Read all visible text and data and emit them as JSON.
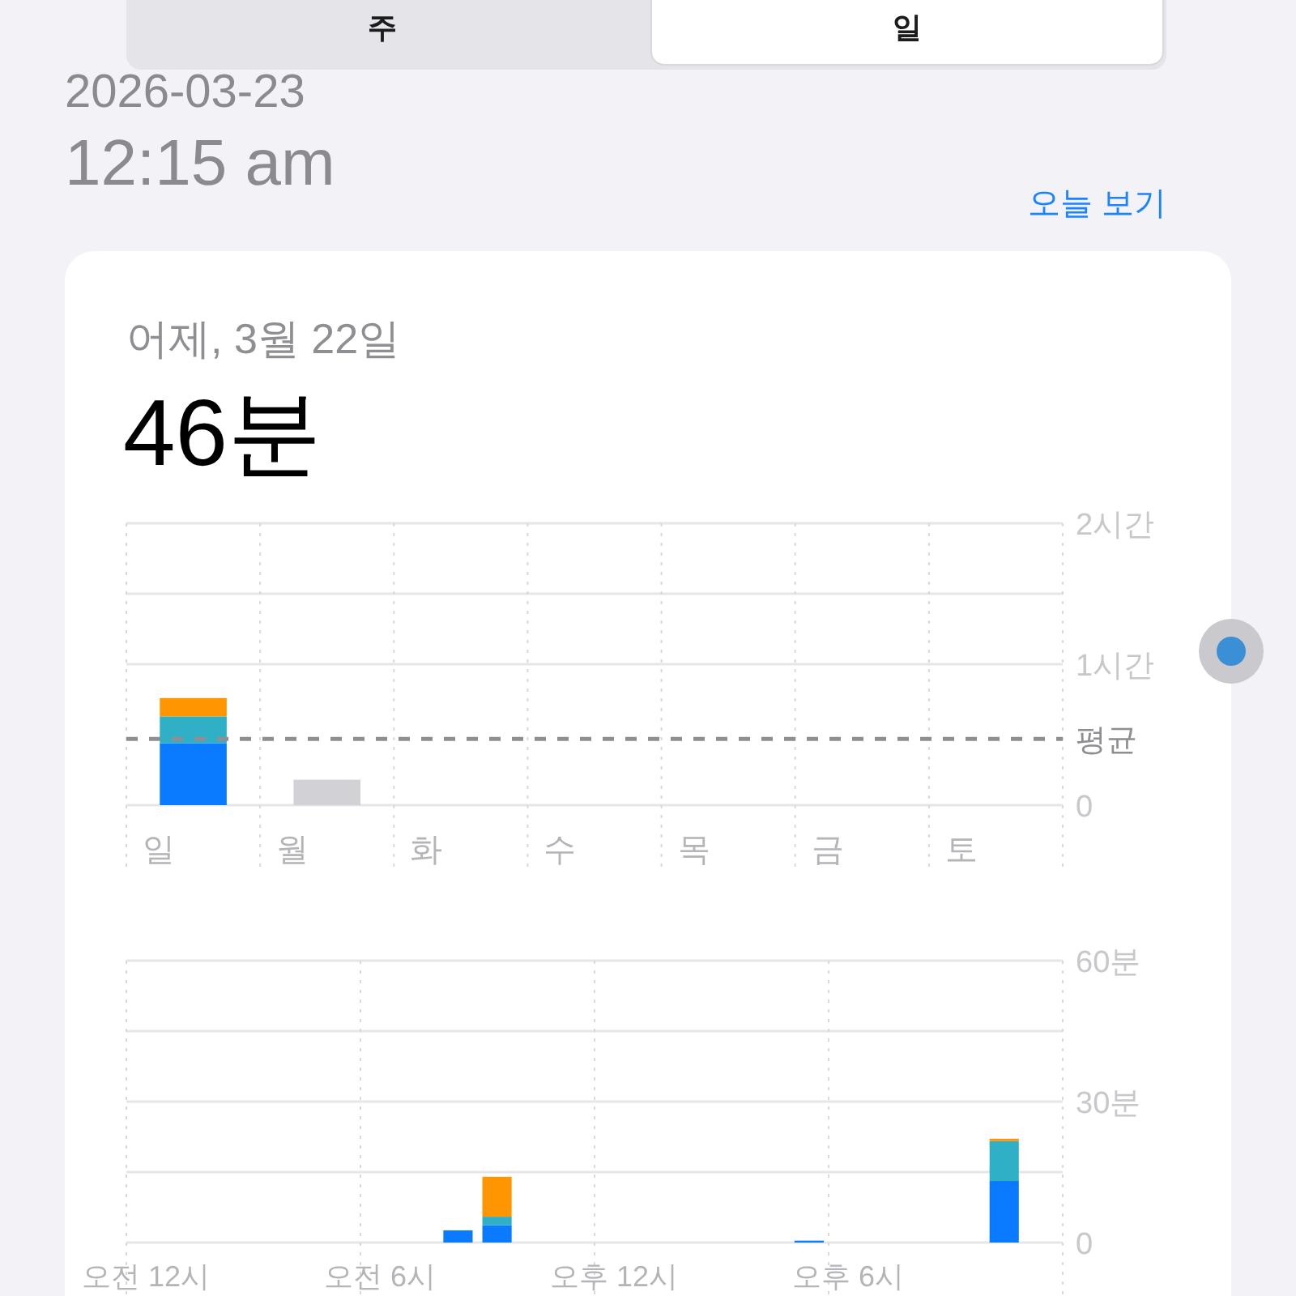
{
  "chart_data": [
    {
      "type": "bar",
      "stacked": true,
      "title": "46분",
      "subtitle": "어제, 3월 22일",
      "annotations": [
        "주",
        "일",
        "2026-03-23",
        "12:15 am",
        "오늘 보기"
      ],
      "categories": [
        "일",
        "월",
        "화",
        "수",
        "목",
        "금",
        "토"
      ],
      "series": [
        {
          "color": "#0a7aff",
          "values": [
            0.44,
            null,
            null,
            null,
            null,
            null,
            null
          ]
        },
        {
          "color": "#30b0c7",
          "values": [
            0.19,
            null,
            null,
            null,
            null,
            null,
            null
          ]
        },
        {
          "color": "#ff9500",
          "values": [
            0.13,
            null,
            null,
            null,
            null,
            null,
            null
          ]
        },
        {
          "color": "#d1d1d6",
          "values": [
            null,
            0.18,
            null,
            null,
            null,
            null,
            null
          ]
        }
      ],
      "ylim": [
        0,
        2
      ],
      "yticks": [
        0,
        {
          "value": 1,
          "label": "1시간"
        },
        {
          "value": 1.5,
          "label": null
        },
        {
          "value": 2,
          "label": "2시간"
        }
      ],
      "ref_lines": [
        {
          "axis": "y",
          "value": 0.47,
          "label": "평균",
          "color": "#8e8e93",
          "line_style": "dashed"
        }
      ],
      "grid": true
    },
    {
      "type": "bar",
      "stacked": true,
      "categories": [
        "오전 12시",
        null,
        null,
        null,
        null,
        null,
        "오전 6시",
        null,
        null,
        null,
        null,
        null,
        "오후 12시",
        null,
        null,
        null,
        null,
        null,
        "오후 6시",
        null,
        null,
        null,
        null,
        null
      ],
      "series": [
        {
          "color": "#0a7aff",
          "values": [
            null,
            null,
            null,
            null,
            null,
            null,
            null,
            null,
            2.6,
            3.7,
            null,
            null,
            null,
            null,
            null,
            null,
            null,
            0.4,
            null,
            null,
            null,
            null,
            13.1,
            null
          ]
        },
        {
          "color": "#30b0c7",
          "values": [
            null,
            null,
            null,
            null,
            null,
            null,
            null,
            null,
            null,
            1.8,
            null,
            null,
            null,
            null,
            null,
            null,
            null,
            null,
            null,
            null,
            null,
            null,
            8.5,
            null
          ]
        },
        {
          "color": "#ff9500",
          "values": [
            null,
            null,
            null,
            null,
            null,
            null,
            null,
            null,
            null,
            8.5,
            null,
            null,
            null,
            null,
            null,
            null,
            null,
            null,
            null,
            null,
            null,
            null,
            0.5,
            null
          ]
        }
      ],
      "ylim": [
        0,
        60
      ],
      "yticks": [
        0,
        {
          "value": 15,
          "label": null
        },
        {
          "value": 30,
          "label": "30분"
        },
        {
          "value": 45,
          "label": null
        },
        {
          "value": 60,
          "label": "60분"
        }
      ],
      "grid": true
    }
  ]
}
